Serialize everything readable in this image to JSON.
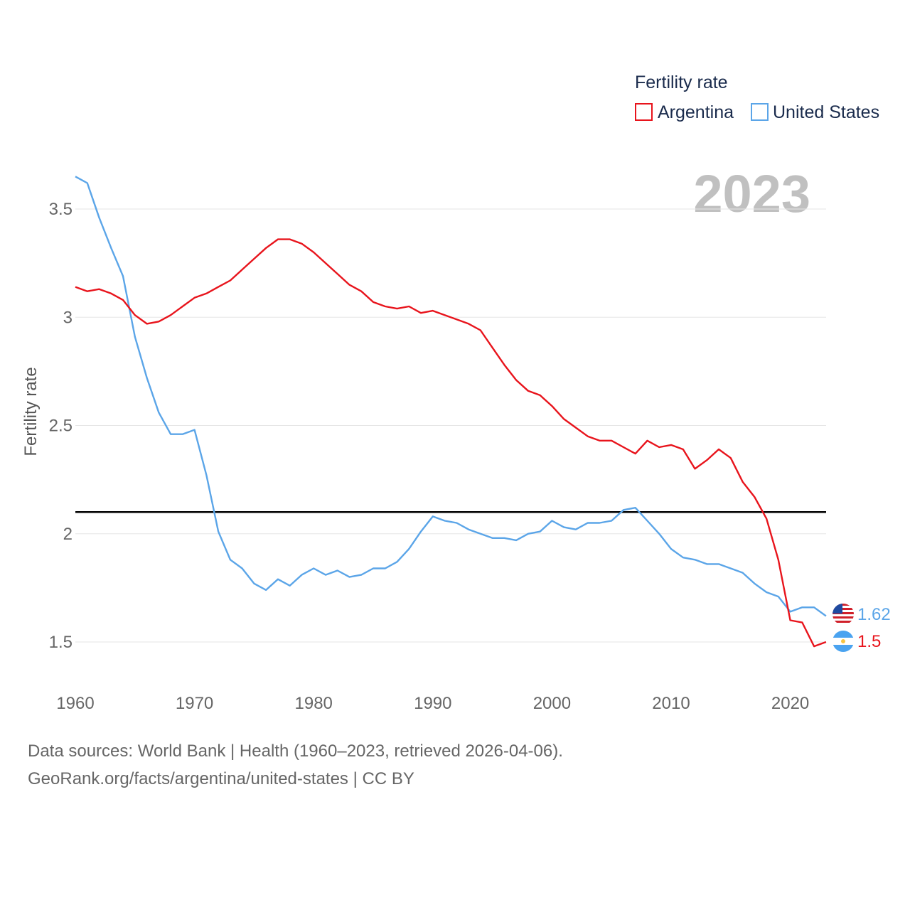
{
  "chart_data": {
    "type": "line",
    "title": "",
    "ylabel": "Fertility rate",
    "xlabel": "",
    "xlim": [
      1960,
      2023
    ],
    "ylim": [
      1.35,
      3.65
    ],
    "x_ticks": [
      1960,
      1970,
      1980,
      1990,
      2000,
      2010,
      2020
    ],
    "y_ticks": [
      1.5,
      2,
      2.5,
      3,
      3.5
    ],
    "y_tick_labels": [
      "1.5",
      "2",
      "2.5",
      "3",
      "3.5"
    ],
    "reference_line": 2.1,
    "year_label": "2023",
    "legend": {
      "title": "Fertility rate",
      "position": "top-right"
    },
    "x": [
      1960,
      1961,
      1962,
      1963,
      1964,
      1965,
      1966,
      1967,
      1968,
      1969,
      1970,
      1971,
      1972,
      1973,
      1974,
      1975,
      1976,
      1977,
      1978,
      1979,
      1980,
      1981,
      1982,
      1983,
      1984,
      1985,
      1986,
      1987,
      1988,
      1989,
      1990,
      1991,
      1992,
      1993,
      1994,
      1995,
      1996,
      1997,
      1998,
      1999,
      2000,
      2001,
      2002,
      2003,
      2004,
      2005,
      2006,
      2007,
      2008,
      2009,
      2010,
      2011,
      2012,
      2013,
      2014,
      2015,
      2016,
      2017,
      2018,
      2019,
      2020,
      2021,
      2022,
      2023
    ],
    "series": [
      {
        "name": "Argentina",
        "color": "#e8141c",
        "end_label": "1.5",
        "values": [
          3.14,
          3.12,
          3.13,
          3.11,
          3.08,
          3.01,
          2.97,
          2.98,
          3.01,
          3.05,
          3.09,
          3.11,
          3.14,
          3.17,
          3.22,
          3.27,
          3.32,
          3.36,
          3.36,
          3.34,
          3.3,
          3.25,
          3.2,
          3.15,
          3.12,
          3.07,
          3.05,
          3.04,
          3.05,
          3.02,
          3.03,
          3.01,
          2.99,
          2.97,
          2.94,
          2.86,
          2.78,
          2.71,
          2.66,
          2.64,
          2.59,
          2.53,
          2.49,
          2.45,
          2.43,
          2.43,
          2.4,
          2.37,
          2.43,
          2.4,
          2.41,
          2.39,
          2.3,
          2.34,
          2.39,
          2.35,
          2.24,
          2.17,
          2.07,
          1.88,
          1.6,
          1.59,
          1.48,
          1.5
        ]
      },
      {
        "name": "United States",
        "color": "#5ba5e8",
        "end_label": "1.62",
        "values": [
          3.65,
          3.62,
          3.46,
          3.32,
          3.19,
          2.91,
          2.72,
          2.56,
          2.46,
          2.46,
          2.48,
          2.27,
          2.01,
          1.88,
          1.84,
          1.77,
          1.74,
          1.79,
          1.76,
          1.81,
          1.84,
          1.81,
          1.83,
          1.8,
          1.81,
          1.84,
          1.84,
          1.87,
          1.93,
          2.01,
          2.08,
          2.06,
          2.05,
          2.02,
          2.0,
          1.98,
          1.98,
          1.97,
          2.0,
          2.01,
          2.06,
          2.03,
          2.02,
          2.05,
          2.05,
          2.06,
          2.11,
          2.12,
          2.06,
          2.0,
          1.93,
          1.89,
          1.88,
          1.86,
          1.86,
          1.84,
          1.82,
          1.77,
          1.73,
          1.71,
          1.64,
          1.66,
          1.66,
          1.62
        ]
      }
    ]
  },
  "footer": {
    "line1": "Data sources: World Bank | Health (1960–2023, retrieved 2026-04-06).",
    "line2": "GeoRank.org/facts/argentina/united-states | CC BY"
  }
}
